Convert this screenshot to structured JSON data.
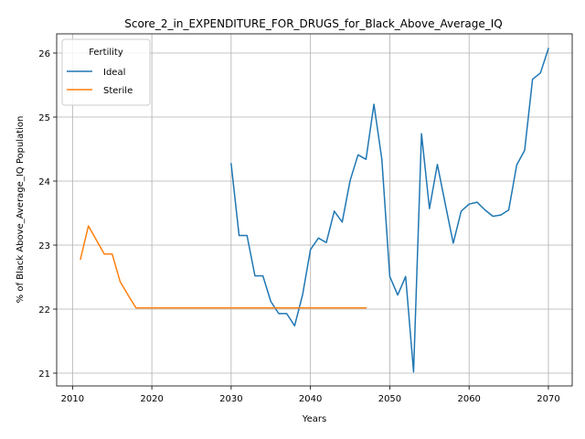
{
  "chart_data": {
    "type": "line",
    "title": "Score_2_in_EXPENDITURE_FOR_DRUGS_for_Black_Above_Average_IQ",
    "xlabel": "Years",
    "ylabel": "% of Black Above_Average_IQ Population",
    "xlim": [
      2008,
      2073
    ],
    "ylim": [
      20.8,
      26.3
    ],
    "xticks": [
      2010,
      2020,
      2030,
      2040,
      2050,
      2060,
      2070
    ],
    "yticks": [
      21,
      22,
      23,
      24,
      25,
      26
    ],
    "grid": true,
    "legend": {
      "title": "Fertility",
      "placement": "top-left"
    },
    "series": [
      {
        "name": "Ideal",
        "color": "#1f77b4",
        "x": [
          2030,
          2031,
          2032,
          2033,
          2034,
          2035,
          2036,
          2037,
          2038,
          2039,
          2040,
          2041,
          2042,
          2043,
          2044,
          2045,
          2046,
          2047,
          2048,
          2049,
          2050,
          2051,
          2052,
          2053,
          2054,
          2055,
          2056,
          2057,
          2058,
          2059,
          2060,
          2061,
          2062,
          2063,
          2064,
          2065,
          2066,
          2067,
          2068,
          2069,
          2070
        ],
        "values": [
          24.27,
          23.15,
          23.15,
          22.52,
          22.52,
          22.12,
          21.93,
          21.93,
          21.74,
          22.22,
          22.93,
          23.11,
          23.04,
          23.53,
          23.36,
          24.01,
          24.41,
          24.34,
          25.2,
          24.34,
          22.51,
          22.22,
          22.51,
          21.02,
          24.74,
          23.57,
          24.26,
          23.64,
          23.03,
          23.53,
          23.64,
          23.67,
          23.55,
          23.45,
          23.47,
          23.55,
          24.25,
          24.48,
          25.59,
          25.69,
          26.07
        ]
      },
      {
        "name": "Sterile",
        "color": "#ff7f0e",
        "x": [
          2011,
          2012,
          2013,
          2014,
          2015,
          2016,
          2017,
          2018,
          2019,
          2020,
          2021,
          2022,
          2023,
          2024,
          2025,
          2026,
          2027,
          2028,
          2029,
          2030,
          2031,
          2032,
          2033,
          2034,
          2035,
          2036,
          2037,
          2038,
          2039,
          2040,
          2041,
          2042,
          2043,
          2044,
          2045,
          2046,
          2047
        ],
        "values": [
          22.78,
          23.3,
          23.08,
          22.86,
          22.86,
          22.43,
          22.22,
          22.02,
          22.02,
          22.02,
          22.02,
          22.02,
          22.02,
          22.02,
          22.02,
          22.02,
          22.02,
          22.02,
          22.02,
          22.02,
          22.02,
          22.02,
          22.02,
          22.02,
          22.02,
          22.02,
          22.02,
          22.02,
          22.02,
          22.02,
          22.02,
          22.02,
          22.02,
          22.02,
          22.02,
          22.02,
          22.02
        ]
      }
    ]
  }
}
